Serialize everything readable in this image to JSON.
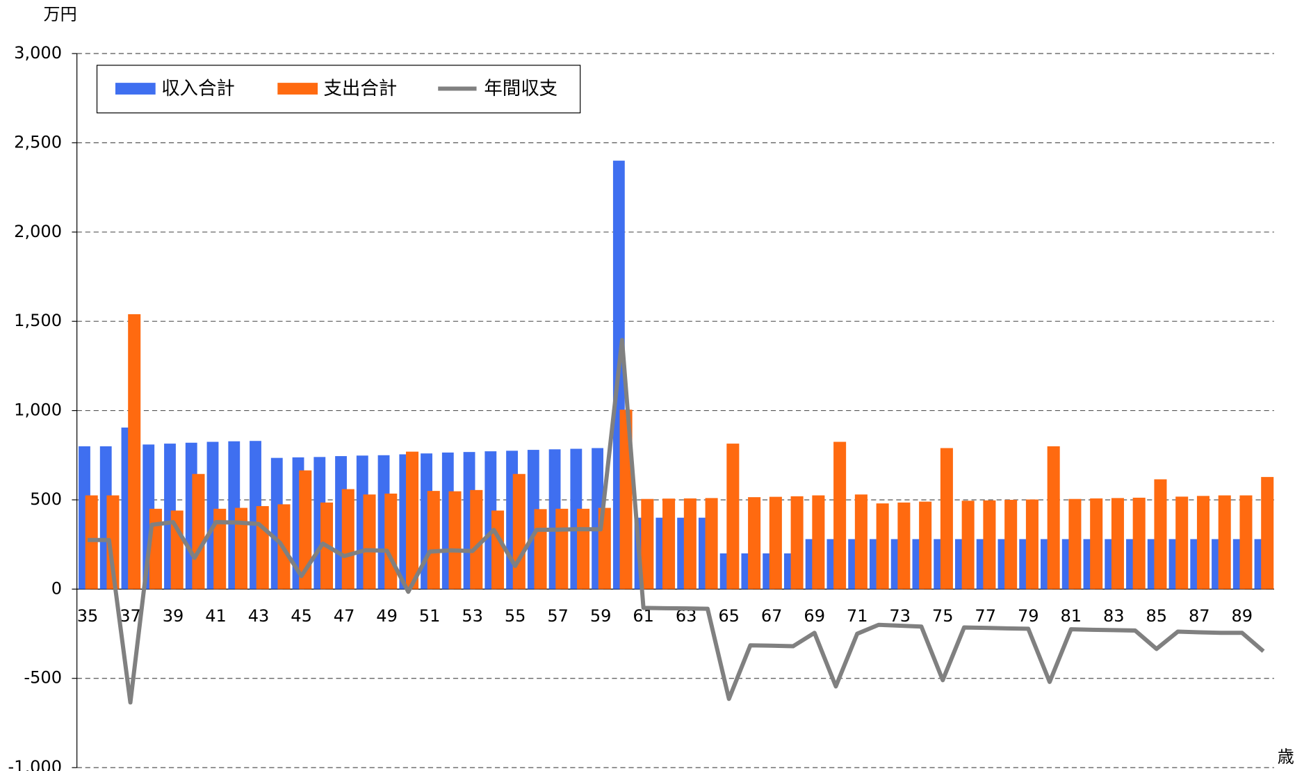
{
  "chart_data": {
    "type": "bar",
    "y_label": "万円",
    "x_label": "歳",
    "categories": [
      "35",
      null,
      "37",
      null,
      "39",
      null,
      "41",
      null,
      "43",
      null,
      "45",
      null,
      "47",
      null,
      "49",
      null,
      "51",
      null,
      "53",
      null,
      "55",
      null,
      "57",
      null,
      "59",
      null,
      "61",
      null,
      "63",
      null,
      "65",
      null,
      "67",
      null,
      "69",
      null,
      "71",
      null,
      "73",
      null,
      "75",
      null,
      "77",
      null,
      "79",
      null,
      "81",
      null,
      "83",
      null,
      "85",
      null,
      "87",
      null,
      "89",
      null
    ],
    "series": [
      {
        "name": "収入合計",
        "type": "bar",
        "color": "#3f6ff0",
        "values": [
          800,
          800,
          905,
          810,
          815,
          820,
          825,
          828,
          830,
          735,
          738,
          740,
          745,
          748,
          750,
          755,
          760,
          765,
          768,
          772,
          775,
          780,
          783,
          786,
          790,
          2400,
          400,
          400,
          400,
          400,
          200,
          200,
          200,
          200,
          280,
          280,
          280,
          280,
          280,
          280,
          280,
          280,
          280,
          280,
          280,
          280,
          280,
          280,
          280,
          280,
          280,
          280,
          280,
          280,
          280,
          280
        ]
      },
      {
        "name": "支出合計",
        "type": "bar",
        "color": "#ff6a10",
        "values": [
          525,
          525,
          1540,
          450,
          440,
          645,
          450,
          455,
          465,
          475,
          665,
          485,
          560,
          530,
          535,
          770,
          550,
          548,
          555,
          440,
          645,
          448,
          450,
          450,
          455,
          1005,
          505,
          507,
          508,
          510,
          815,
          515,
          517,
          520,
          525,
          825,
          530,
          480,
          485,
          490,
          790,
          495,
          497,
          500,
          502,
          800,
          505,
          508,
          510,
          512,
          615,
          518,
          522,
          525,
          525,
          628
        ]
      },
      {
        "name": "年間収支",
        "type": "line",
        "color": "#808080",
        "values": [
          275,
          275,
          -635,
          360,
          375,
          175,
          375,
          373,
          365,
          260,
          73,
          255,
          185,
          218,
          215,
          -15,
          210,
          217,
          213,
          332,
          130,
          332,
          333,
          336,
          335,
          1395,
          -105,
          -107,
          -108,
          -110,
          -615,
          -315,
          -317,
          -320,
          -245,
          -545,
          -250,
          -200,
          -205,
          -210,
          -510,
          -215,
          -217,
          -220,
          -222,
          -520,
          -225,
          -228,
          -230,
          -232,
          -335,
          -238,
          -242,
          -245,
          -245,
          -348
        ]
      }
    ],
    "ylim": [
      -1000,
      3000
    ],
    "yticks": [
      {
        "value": -1000,
        "label": "-1,000"
      },
      -500,
      0,
      500,
      {
        "value": 1000,
        "label": "1,000"
      },
      {
        "value": 1500,
        "label": "1,500"
      },
      {
        "value": 2000,
        "label": "2,000"
      },
      {
        "value": 2500,
        "label": "2,500"
      },
      {
        "value": 3000,
        "label": "3,000"
      }
    ],
    "negative_tick_color": "#ff0000",
    "grid": true,
    "legend": "top-left"
  }
}
